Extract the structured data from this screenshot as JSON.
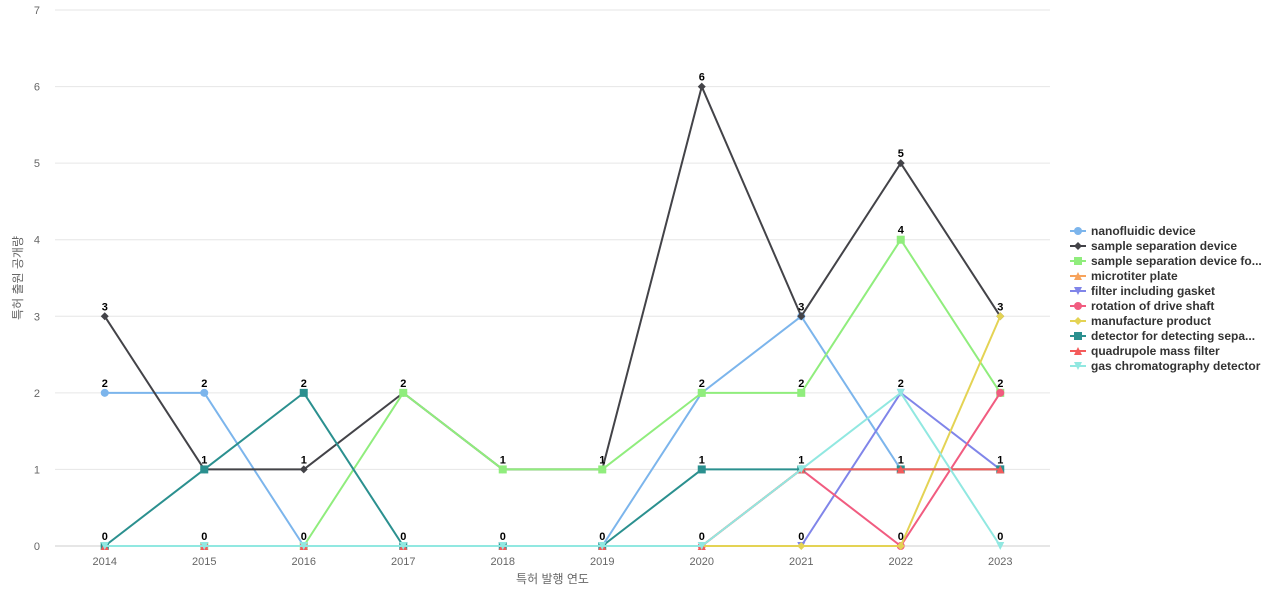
{
  "chart_data": {
    "type": "line",
    "title": "",
    "xlabel": "특허 발행 연도",
    "ylabel": "특허 출원 공개량",
    "x": [
      "2014",
      "2015",
      "2016",
      "2017",
      "2018",
      "2019",
      "2020",
      "2021",
      "2022",
      "2023"
    ],
    "ylim": [
      0,
      7
    ],
    "yticks": [
      0,
      1,
      2,
      3,
      4,
      5,
      6,
      7
    ],
    "grid": true,
    "legend_position": "right",
    "series": [
      {
        "name": "nanofluidic device",
        "color": "#7cb5ec",
        "marker": "circle",
        "values": [
          2,
          2,
          0,
          0,
          0,
          0,
          2,
          3,
          1,
          1
        ]
      },
      {
        "name": "sample separation device",
        "color": "#434348",
        "marker": "diamond",
        "values": [
          3,
          1,
          1,
          2,
          1,
          1,
          6,
          3,
          5,
          3
        ]
      },
      {
        "name": "sample separation device fo...",
        "color": "#90ed7d",
        "marker": "square",
        "values": [
          0,
          0,
          0,
          2,
          1,
          1,
          2,
          2,
          4,
          2
        ]
      },
      {
        "name": "microtiter plate",
        "color": "#f7a35c",
        "marker": "triangle",
        "values": [
          0,
          0,
          0,
          0,
          0,
          0,
          0,
          1,
          1,
          1
        ]
      },
      {
        "name": "filter including gasket",
        "color": "#8085e9",
        "marker": "triangle-down",
        "values": [
          0,
          0,
          0,
          0,
          0,
          0,
          0,
          0,
          2,
          1
        ]
      },
      {
        "name": "rotation of drive shaft",
        "color": "#f15c80",
        "marker": "circle",
        "values": [
          0,
          0,
          0,
          0,
          0,
          0,
          0,
          1,
          0,
          2
        ]
      },
      {
        "name": "manufacture product",
        "color": "#e4d354",
        "marker": "diamond",
        "values": [
          0,
          0,
          0,
          0,
          0,
          0,
          0,
          0,
          0,
          3
        ]
      },
      {
        "name": "detector for detecting sepa...",
        "color": "#2b908f",
        "marker": "square",
        "values": [
          0,
          1,
          2,
          0,
          0,
          0,
          1,
          1,
          1,
          1
        ]
      },
      {
        "name": "quadrupole mass filter",
        "color": "#f45b5b",
        "marker": "triangle",
        "values": [
          0,
          0,
          0,
          0,
          0,
          0,
          0,
          1,
          1,
          1
        ]
      },
      {
        "name": "gas chromatography detector",
        "color": "#91e8e1",
        "marker": "triangle-down",
        "values": [
          0,
          0,
          0,
          0,
          0,
          0,
          0,
          1,
          2,
          0
        ]
      }
    ],
    "data_labels": [
      {
        "x": "2014",
        "value": 3
      },
      {
        "x": "2014",
        "value": 2
      },
      {
        "x": "2014",
        "value": 0
      },
      {
        "x": "2015",
        "value": 2
      },
      {
        "x": "2015",
        "value": 1
      },
      {
        "x": "2015",
        "value": 0
      },
      {
        "x": "2016",
        "value": 2
      },
      {
        "x": "2016",
        "value": 1
      },
      {
        "x": "2016",
        "value": 0
      },
      {
        "x": "2017",
        "value": 2
      },
      {
        "x": "2017",
        "value": 0
      },
      {
        "x": "2018",
        "value": 1
      },
      {
        "x": "2018",
        "value": 0
      },
      {
        "x": "2019",
        "value": 1
      },
      {
        "x": "2019",
        "value": 0
      },
      {
        "x": "2020",
        "value": 6
      },
      {
        "x": "2020",
        "value": 2
      },
      {
        "x": "2020",
        "value": 1
      },
      {
        "x": "2020",
        "value": 0
      },
      {
        "x": "2021",
        "value": 3
      },
      {
        "x": "2021",
        "value": 2
      },
      {
        "x": "2021",
        "value": 1
      },
      {
        "x": "2021",
        "value": 0
      },
      {
        "x": "2022",
        "value": 5
      },
      {
        "x": "2022",
        "value": 4
      },
      {
        "x": "2022",
        "value": 2
      },
      {
        "x": "2022",
        "value": 1
      },
      {
        "x": "2022",
        "value": 0
      },
      {
        "x": "2023",
        "value": 3
      },
      {
        "x": "2023",
        "value": 2
      },
      {
        "x": "2023",
        "value": 1
      },
      {
        "x": "2023",
        "value": 0
      }
    ]
  }
}
